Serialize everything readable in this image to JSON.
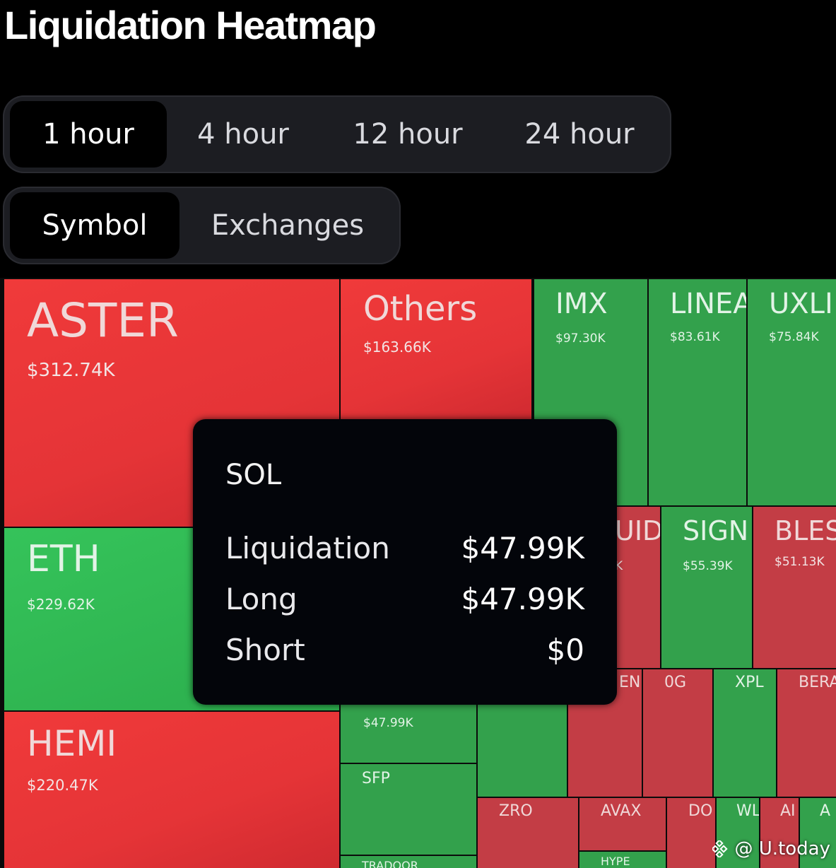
{
  "page": {
    "title": "Liquidation Heatmap"
  },
  "time_tabs": [
    {
      "label": "1 hour",
      "active": true
    },
    {
      "label": "4 hour",
      "active": false
    },
    {
      "label": "12 hour",
      "active": false
    },
    {
      "label": "24 hour",
      "active": false
    }
  ],
  "view_tabs": [
    {
      "label": "Symbol",
      "active": true
    },
    {
      "label": "Exchanges",
      "active": false
    }
  ],
  "colors": {
    "long_liquidation": "#e5343a",
    "short_liquidation": "#2fb150",
    "background": "#000000"
  },
  "tiles": {
    "aster": {
      "symbol": "ASTER",
      "value": "$312.74K"
    },
    "others": {
      "symbol": "Others",
      "value": "$163.66K"
    },
    "imx": {
      "symbol": "IMX",
      "value": "$97.30K"
    },
    "linea": {
      "symbol": "LINEA",
      "value": "$83.61K"
    },
    "uxlink": {
      "symbol": "UXLI",
      "value": "$75.84K"
    },
    "eth": {
      "symbol": "ETH",
      "value": "$229.62K"
    },
    "hemi": {
      "symbol": "HEMI",
      "value": "$220.47K"
    },
    "uid": {
      "symbol": "UID",
      "value": "K"
    },
    "sign": {
      "symbol": "SIGN",
      "value": "$55.39K"
    },
    "bless": {
      "symbol": "BLES",
      "value": "$51.13K"
    },
    "sol": {
      "value": "$47.99K"
    },
    "sfp": {
      "symbol": "SFP"
    },
    "en": {
      "symbol": "EN"
    },
    "og": {
      "symbol": "0G"
    },
    "xpl": {
      "symbol": "XPL"
    },
    "bera": {
      "symbol": "BERA"
    },
    "zro": {
      "symbol": "ZRO"
    },
    "avax": {
      "symbol": "AVAX"
    },
    "do": {
      "symbol": "DO"
    },
    "wl": {
      "symbol": "WL"
    },
    "ai": {
      "symbol": "AI"
    },
    "a": {
      "symbol": "A"
    },
    "hype": {
      "symbol": "HYPE"
    },
    "tradoor": {
      "symbol": "TRADOOR"
    }
  },
  "tooltip": {
    "symbol": "SOL",
    "rows": [
      {
        "label": "Liquidation",
        "value": "$47.99K"
      },
      {
        "label": "Long",
        "value": "$47.99K"
      },
      {
        "label": "Short",
        "value": "$0"
      }
    ]
  },
  "watermark": {
    "text": "@ U.today"
  }
}
